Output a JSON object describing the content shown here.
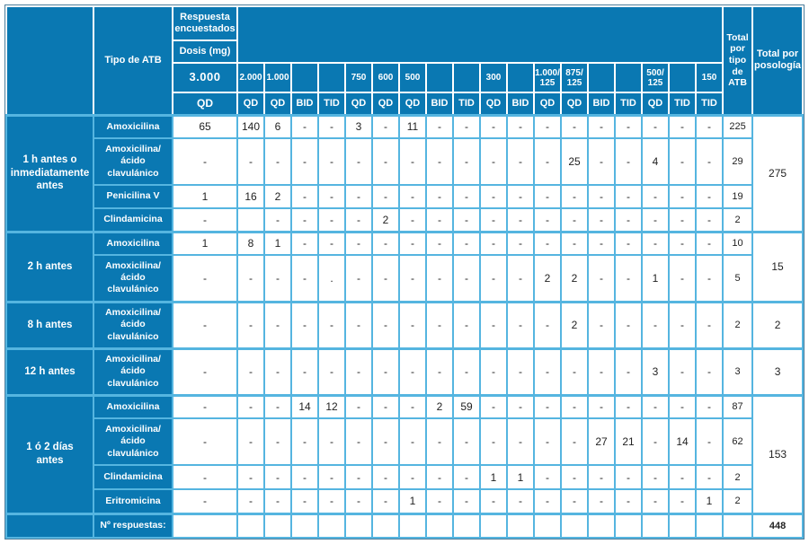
{
  "colors": {
    "header_blue": "#0a78b2",
    "grid_blue": "#55b5e0"
  },
  "table": {
    "header": {
      "tipo_atb": "Tipo de ATB",
      "respuesta": "Respuesta encuestados",
      "dosis": "Dosis (mg)",
      "total_tipo": "Total por tipo de ATB",
      "total_posologia": "Total por posología",
      "doses": [
        "3.000",
        "2.000",
        "1.000",
        "",
        "",
        "750",
        "600",
        "500",
        "",
        "",
        "300",
        "",
        "1.000/\n125",
        "875/\n125",
        "",
        "",
        "500/\n125",
        "",
        "150"
      ],
      "posologias": [
        "QD",
        "QD",
        "QD",
        "BID",
        "TID",
        "QD",
        "QD",
        "QD",
        "BID",
        "TID",
        "QD",
        "BID",
        "QD",
        "QD",
        "BID",
        "TID",
        "QD",
        "TID",
        "TID"
      ]
    },
    "groups": [
      {
        "time": "1 h antes o\ninmediatamente\nantes",
        "total_posologia": "275",
        "rows": [
          {
            "atb": "Amoxicilina",
            "cells": [
              "65",
              "140",
              "6",
              "-",
              "-",
              "3",
              "-",
              "11",
              "-",
              "-",
              "-",
              "-",
              "-",
              "-",
              "-",
              "-",
              "-",
              "-",
              "-"
            ],
            "total": "225"
          },
          {
            "atb": "Amoxicilina/\nácido\nclavulánico",
            "cells": [
              "-",
              "-",
              "-",
              "-",
              "-",
              "-",
              "-",
              "-",
              "-",
              "-",
              "-",
              "-",
              "-",
              "25",
              "-",
              "-",
              "4",
              "-",
              "-"
            ],
            "total": "29"
          },
          {
            "atb": "Penicilina V",
            "cells": [
              "1",
              "16",
              "2",
              "-",
              "-",
              "-",
              "-",
              "-",
              "-",
              "-",
              "-",
              "-",
              "-",
              "-",
              "-",
              "-",
              "-",
              "-",
              "-"
            ],
            "total": "19"
          },
          {
            "atb": "Clindamicina",
            "cells": [
              "-",
              "",
              "-",
              "-",
              "-",
              "-",
              "2",
              "-",
              "-",
              "-",
              "-",
              "-",
              "-",
              "-",
              "-",
              "-",
              "-",
              "-",
              "-"
            ],
            "total": "2"
          }
        ]
      },
      {
        "time": "2 h antes",
        "total_posologia": "15",
        "rows": [
          {
            "atb": "Amoxicilina",
            "cells": [
              "1",
              "8",
              "1",
              "-",
              "-",
              "-",
              "-",
              "-",
              "-",
              "-",
              "-",
              "-",
              "-",
              "-",
              "-",
              "-",
              "-",
              "-",
              "-"
            ],
            "total": "10"
          },
          {
            "atb": "Amoxicilina/\nácido\nclavulánico",
            "cells": [
              "-",
              "-",
              "-",
              "-",
              ".",
              "-",
              "-",
              "-",
              "-",
              "-",
              "-",
              "-",
              "2",
              "2",
              "-",
              "-",
              "1",
              "-",
              "-"
            ],
            "total": "5"
          }
        ]
      },
      {
        "time": "8 h antes",
        "total_posologia": "2",
        "rows": [
          {
            "atb": "Amoxicilina/\nácido\nclavulánico",
            "cells": [
              "-",
              "-",
              "-",
              "-",
              "-",
              "-",
              "-",
              "-",
              "-",
              "-",
              "-",
              "-",
              "-",
              "2",
              "-",
              "-",
              "-",
              "-",
              "-"
            ],
            "total": "2"
          }
        ]
      },
      {
        "time": "12 h antes",
        "total_posologia": "3",
        "rows": [
          {
            "atb": "Amoxicilina/\nácido\nclavulánico",
            "cells": [
              "-",
              "-",
              "-",
              "-",
              "-",
              "-",
              "-",
              "-",
              "-",
              "-",
              "-",
              "-",
              "-",
              "-",
              "-",
              "-",
              "3",
              "-",
              "-"
            ],
            "total": "3"
          }
        ]
      },
      {
        "time": "1 ó 2 días\nantes",
        "total_posologia": "153",
        "rows": [
          {
            "atb": "Amoxicilina",
            "cells": [
              "-",
              "-",
              "-",
              "14",
              "12",
              "-",
              "-",
              "-",
              "2",
              "59",
              "-",
              "-",
              "-",
              "-",
              "-",
              "-",
              "-",
              "-",
              "-"
            ],
            "total": "87"
          },
          {
            "atb": "Amoxicilina/\nácido\nclavulánico",
            "cells": [
              "-",
              "-",
              "-",
              "-",
              "-",
              "-",
              "-",
              "-",
              "-",
              "-",
              "-",
              "-",
              "-",
              "-",
              "27",
              "21",
              "-",
              "14",
              "-"
            ],
            "total": "62"
          },
          {
            "atb": "Clindamicina",
            "cells": [
              "-",
              "-",
              "-",
              "-",
              "-",
              "-",
              "-",
              "-",
              "-",
              "-",
              "1",
              "1",
              "-",
              "-",
              "-",
              "-",
              "-",
              "-",
              "-"
            ],
            "total": "2"
          },
          {
            "atb": "Eritromicina",
            "cells": [
              "-",
              "-",
              "-",
              "-",
              "-",
              "-",
              "-",
              "1",
              "-",
              "-",
              "-",
              "-",
              "-",
              "-",
              "-",
              "-",
              "-",
              "-",
              "1"
            ],
            "total": "2"
          }
        ]
      }
    ],
    "footer": {
      "label": "Nº respuestas:",
      "cells": [
        "",
        "",
        "",
        "",
        "",
        "",
        "",
        "",
        "",
        "",
        "",
        "",
        "",
        "",
        "",
        "",
        "",
        "",
        "",
        ""
      ],
      "grand_total": "448"
    }
  }
}
